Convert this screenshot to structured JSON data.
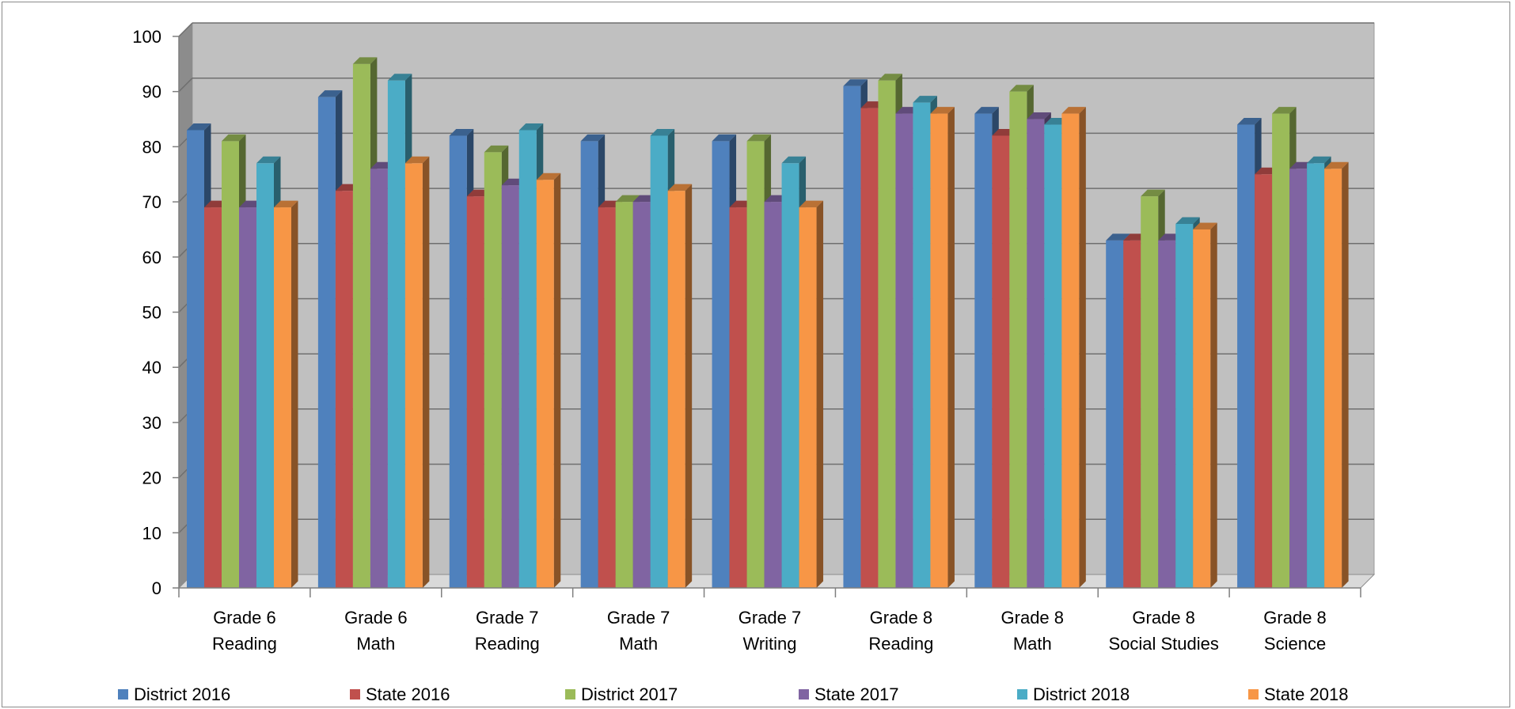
{
  "chart_data": {
    "type": "bar",
    "variant": "3d-clustered-column",
    "title": "",
    "xlabel": "",
    "ylabel": "",
    "ylim": [
      0,
      100
    ],
    "yticks": [
      0,
      10,
      20,
      30,
      40,
      50,
      60,
      70,
      80,
      90,
      100
    ],
    "grid": true,
    "legend_position": "bottom",
    "categories": [
      [
        "Grade 6",
        "Reading"
      ],
      [
        "Grade 6",
        "Math"
      ],
      [
        "Grade 7",
        "Reading"
      ],
      [
        "Grade 7",
        "Math"
      ],
      [
        "Grade 7",
        "Writing"
      ],
      [
        "Grade 8",
        "Reading"
      ],
      [
        "Grade 8",
        "Math"
      ],
      [
        "Grade 8",
        "Social Studies"
      ],
      [
        "Grade 8",
        "Science"
      ]
    ],
    "series": [
      {
        "name": "District 2016",
        "color": "#4f81bd",
        "values": [
          83,
          89,
          82,
          81,
          81,
          91,
          86,
          63,
          84
        ]
      },
      {
        "name": "State 2016",
        "color": "#c0504d",
        "values": [
          69,
          72,
          71,
          69,
          69,
          87,
          82,
          63,
          75
        ]
      },
      {
        "name": "District 2017",
        "color": "#9bbb59",
        "values": [
          81,
          95,
          79,
          70,
          81,
          92,
          90,
          71,
          86
        ]
      },
      {
        "name": "State 2017",
        "color": "#8064a2",
        "values": [
          69,
          76,
          73,
          70,
          70,
          86,
          85,
          63,
          76
        ]
      },
      {
        "name": "District 2018",
        "color": "#4bacc6",
        "values": [
          77,
          92,
          83,
          82,
          77,
          88,
          84,
          66,
          77
        ]
      },
      {
        "name": "State 2018",
        "color": "#f79646",
        "values": [
          69,
          77,
          74,
          72,
          69,
          86,
          86,
          65,
          76
        ]
      }
    ],
    "colors": {
      "plot_wall": "#c0c0c0",
      "side_wall": "#8c8c8c",
      "floor": "#d9d9d9",
      "gridline": "#6f6f6f"
    }
  }
}
